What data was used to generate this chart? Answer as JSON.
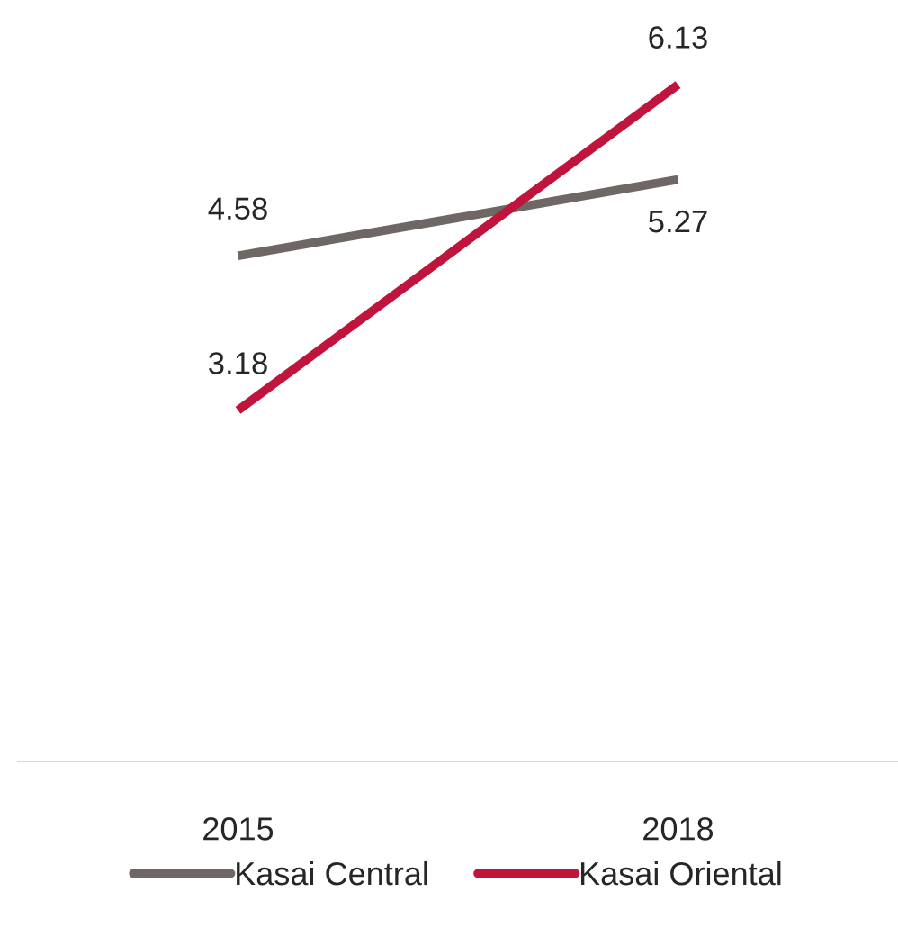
{
  "chart_data": {
    "type": "line",
    "categories": [
      "2015",
      "2018"
    ],
    "series": [
      {
        "name": "Kasai Central",
        "color": "#6f6765",
        "values": [
          4.58,
          5.27
        ]
      },
      {
        "name": "Kasai Oriental",
        "color": "#c0143c",
        "values": [
          3.18,
          6.13
        ]
      }
    ],
    "data_labels": true,
    "legend": "bottom",
    "grid": false,
    "tick_labels": "x",
    "marker": "none",
    "line_style": "solid"
  }
}
